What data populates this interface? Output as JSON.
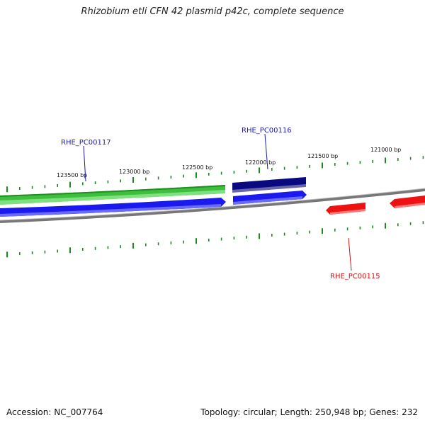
{
  "title": "Rhizobium etli CFN 42 plasmid p42c, complete sequence",
  "footer": {
    "accession": "Accession: NC_007764",
    "summary": "Topology: circular; Length: 250,948 bp; Genes: 232"
  },
  "colors": {
    "tick": "#1e8a1e",
    "backbone": "#777777",
    "forward_track": "#3dbf3d",
    "forward_dark": "#0a0a80",
    "reverse_track": "#1a1aee",
    "minus_strand": "#ee1111"
  },
  "scale_labels": [
    "123500 bp",
    "123000 bp",
    "122500 bp",
    "122000 bp",
    "121500 bp",
    "121000 bp"
  ],
  "genes": [
    {
      "name": "RHE_PC00117",
      "color": "#1a1aaa"
    },
    {
      "name": "RHE_PC00116",
      "color": "#1a1aaa"
    },
    {
      "name": "RHE_PC00115",
      "color": "#cc1111"
    }
  ]
}
